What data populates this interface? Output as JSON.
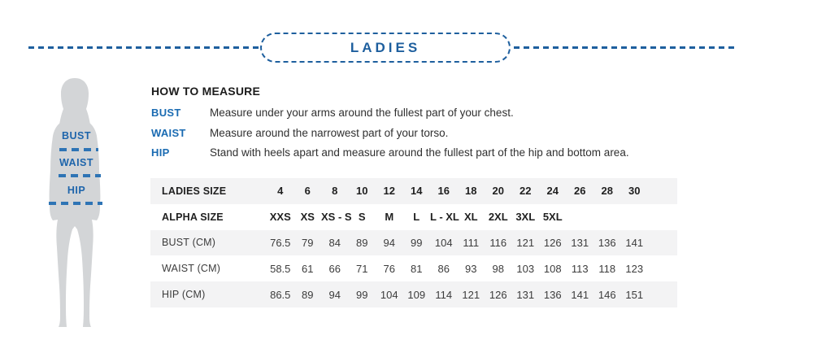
{
  "banner": {
    "title": "LADIES"
  },
  "figure": {
    "measures": [
      {
        "label": "BUST"
      },
      {
        "label": "WAIST"
      },
      {
        "label": "HIP"
      }
    ]
  },
  "how_to_measure": {
    "title": "HOW TO MEASURE",
    "items": [
      {
        "label": "BUST",
        "text": "Measure under your arms around the fullest part of your chest."
      },
      {
        "label": "WAIST",
        "text": "Measure around the narrowest part of your torso."
      },
      {
        "label": "HIP",
        "text": "Stand with heels apart and measure around the fullest part of the hip and bottom area."
      }
    ]
  },
  "size_table": {
    "rows": [
      {
        "label": "LADIES SIZE",
        "header": true,
        "values": [
          "4",
          "6",
          "8",
          "10",
          "12",
          "14",
          "16",
          "18",
          "20",
          "22",
          "24",
          "26",
          "28",
          "30"
        ]
      },
      {
        "label": "ALPHA SIZE",
        "header": true,
        "values": [
          "XXS",
          "XS",
          "XS - S",
          "S",
          "M",
          "L",
          "L - XL",
          "XL",
          "2XL",
          "3XL",
          "5XL",
          "",
          "",
          ""
        ]
      },
      {
        "label": "BUST (CM)",
        "header": false,
        "values": [
          "76.5",
          "79",
          "84",
          "89",
          "94",
          "99",
          "104",
          "111",
          "116",
          "121",
          "126",
          "131",
          "136",
          "141"
        ]
      },
      {
        "label": "WAIST (CM)",
        "header": false,
        "values": [
          "58.5",
          "61",
          "66",
          "71",
          "76",
          "81",
          "86",
          "93",
          "98",
          "103",
          "108",
          "113",
          "118",
          "123"
        ]
      },
      {
        "label": "HIP (CM)",
        "header": false,
        "values": [
          "86.5",
          "89",
          "94",
          "99",
          "104",
          "109",
          "114",
          "121",
          "126",
          "131",
          "136",
          "141",
          "146",
          "151"
        ]
      }
    ]
  },
  "colors": {
    "accent_blue": "#1e5f9e",
    "label_blue": "#1a6bb2",
    "dash_blue": "#2e74b5",
    "silhouette_gray": "#d3d5d7",
    "row_stripe": "#f3f3f4"
  }
}
